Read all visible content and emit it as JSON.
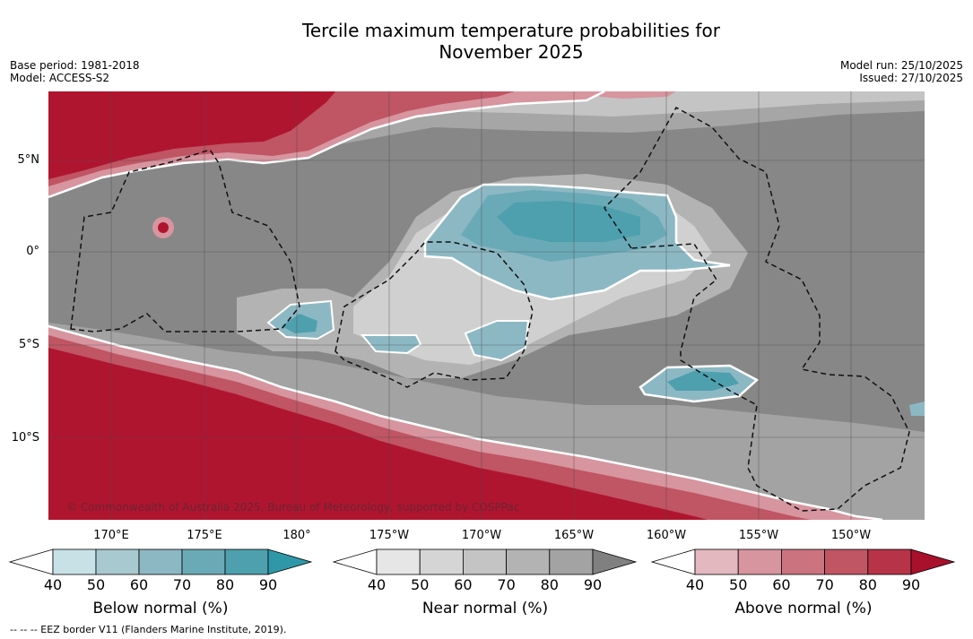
{
  "header": {
    "title_line1": "Tercile maximum temperature probabilities for",
    "title_line2": "November 2025",
    "base_period": "Base period: 1981-2018",
    "model": "Model: ACCESS-S2",
    "model_run": "Model run: 25/10/2025",
    "issued": "Issued: 27/10/2025"
  },
  "map": {
    "lat_labels": [
      "5°N",
      "0°",
      "5°S",
      "10°S"
    ],
    "lon_labels": [
      "170°E",
      "175°E",
      "180°",
      "175°W",
      "170°W",
      "165°W",
      "160°W",
      "155°W",
      "150°W"
    ],
    "credit": "© Commonwealth of Australia 2025, Bureau of Meteorology, supported by COSPPac",
    "eez_note": "-- -- -- EEZ border V11 (Flanders Marine Institute, 2019).",
    "colors": {
      "below": "#4aa3b4",
      "near": "#8a8a8a",
      "above": "#b21e37"
    }
  },
  "legends": [
    {
      "title": "Below normal (%)",
      "ticks": [
        "40",
        "50",
        "60",
        "70",
        "80",
        "90"
      ],
      "colors": [
        "#c8e1e7",
        "#a7c9cf",
        "#8cb8c4",
        "#6aaab6",
        "#4ea0ae",
        "#2f98a8"
      ]
    },
    {
      "title": "Near normal (%)",
      "ticks": [
        "40",
        "50",
        "60",
        "70",
        "80",
        "90"
      ],
      "colors": [
        "#e6e6e6",
        "#d5d5d5",
        "#c4c4c4",
        "#b3b3b3",
        "#a3a3a3",
        "#8a8a8a"
      ]
    },
    {
      "title": "Above normal (%)",
      "ticks": [
        "40",
        "50",
        "60",
        "70",
        "80",
        "90"
      ],
      "colors": [
        "#e3b8bf",
        "#d7959f",
        "#cb7480",
        "#c05564",
        "#b73347",
        "#b0152f"
      ]
    }
  ]
}
